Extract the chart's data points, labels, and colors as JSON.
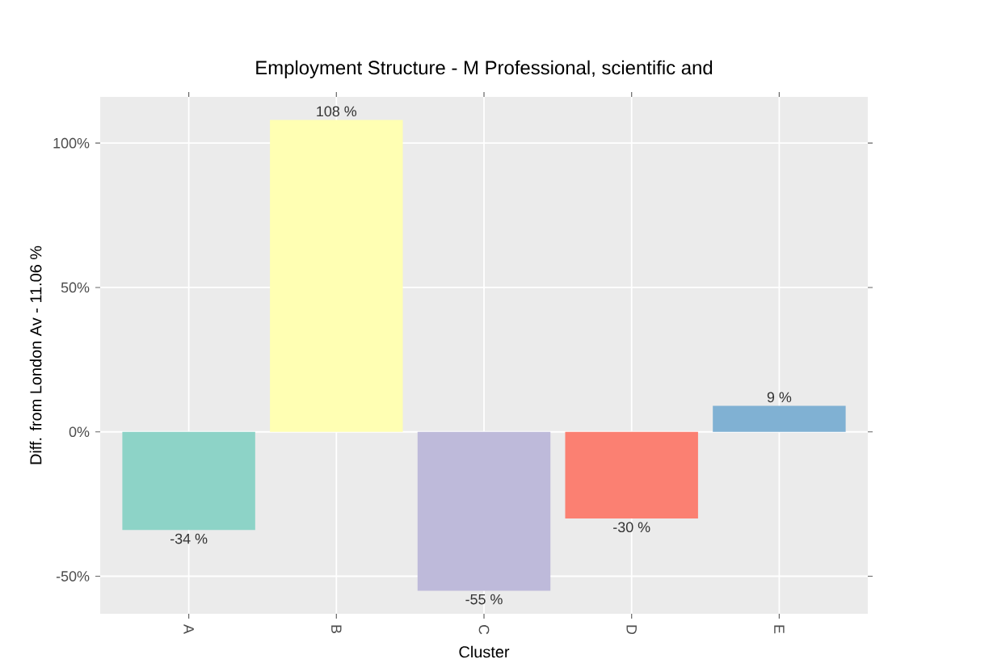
{
  "chart_data": {
    "type": "bar",
    "title": "Employment Structure - M Professional, scientific and",
    "xlabel": "Cluster",
    "ylabel": "Diff. from London Av - 11.06 %",
    "categories": [
      "A",
      "B",
      "C",
      "D",
      "E"
    ],
    "values": [
      -34,
      108,
      -55,
      -30,
      9
    ],
    "colors": [
      "#8dd3c7",
      "#ffffb3",
      "#bebada",
      "#fb8072",
      "#80b1d3"
    ],
    "value_labels": [
      "-34 %",
      "108 %",
      "-55 %",
      "-30 %",
      "9 %"
    ],
    "ylim": [
      -63,
      116
    ],
    "yticks": [
      {
        "value": -50,
        "label": "-50%"
      },
      {
        "value": 0,
        "label": "0%"
      },
      {
        "value": 50,
        "label": "50%"
      },
      {
        "value": 100,
        "label": "100%"
      }
    ],
    "grid": true
  }
}
